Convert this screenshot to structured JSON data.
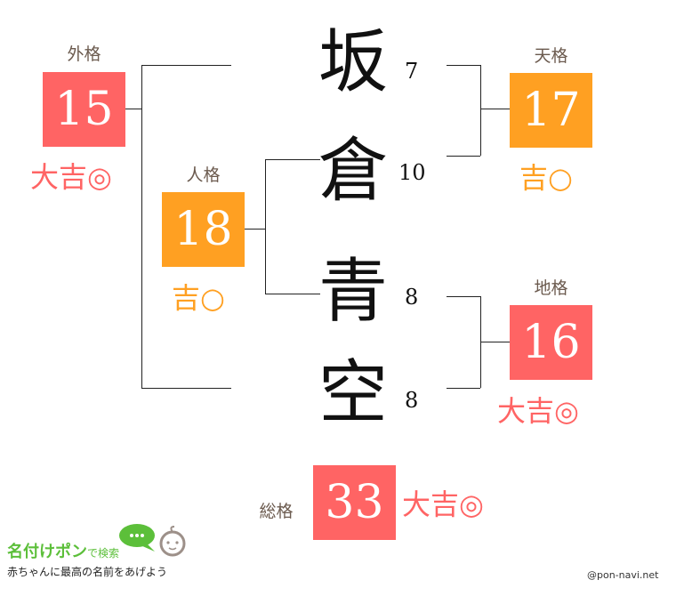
{
  "name_chars": [
    {
      "char": "坂",
      "strokes": "7"
    },
    {
      "char": "倉",
      "strokes": "10"
    },
    {
      "char": "青",
      "strokes": "8"
    },
    {
      "char": "空",
      "strokes": "8"
    }
  ],
  "gaikaku": {
    "label": "外格",
    "value": "15",
    "fortune": "大吉◎",
    "color": "#ff6464"
  },
  "tenkaku": {
    "label": "天格",
    "value": "17",
    "fortune": "吉○",
    "color": "#ffa022"
  },
  "jinkaku": {
    "label": "人格",
    "value": "18",
    "fortune": "吉○",
    "color": "#ffa022"
  },
  "chikaku": {
    "label": "地格",
    "value": "16",
    "fortune": "大吉◎",
    "color": "#ff6464"
  },
  "soukaku": {
    "label": "総格",
    "value": "33",
    "fortune": "大吉◎",
    "color": "#ff6464"
  },
  "logo": {
    "title": "名付けポン",
    "title_suffix": "で検索",
    "tagline": "赤ちゃんに最高の名前をあげよう"
  },
  "credit": "@pon-navi.net"
}
